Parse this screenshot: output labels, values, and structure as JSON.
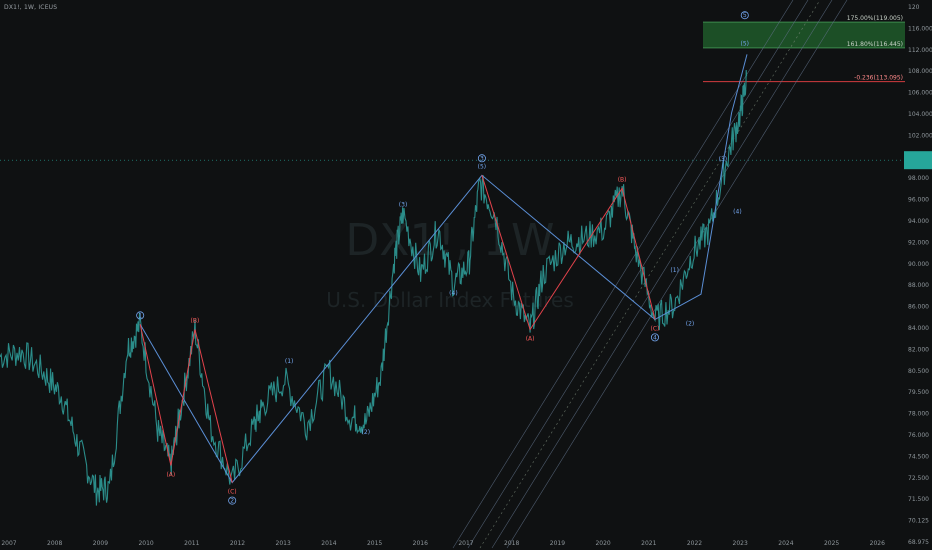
{
  "symbol_bar": {
    "symbol": "DX1!, 1W, ICEUS"
  },
  "watermark": {
    "ticker": "DX1!, 1W",
    "name": "U.S. Dollar Index Futures"
  },
  "colors": {
    "background": "#0f1112",
    "price": "#2b8d8a",
    "wave_blue": "#5b8fd6",
    "wave_red": "#e2424b",
    "label_blue": "#74a7f0",
    "label_red": "#ff5c5c",
    "fib_box": "#1e5a2a",
    "current_price_tag": "#26a69a",
    "fib_line": "#d33b3f",
    "channel": "#5f6f86"
  },
  "fib_levels": [
    {
      "label": "175.00%(119.005)",
      "value": 119.005
    },
    {
      "label": "161.80%(116.445)",
      "value": 116.445
    },
    {
      "label": "-0.236(113.095)",
      "value": 113.095
    }
  ],
  "current_price": 105.3,
  "chart_data": {
    "type": "line",
    "title": "",
    "xlabel": "",
    "ylabel": "",
    "x_ticks": [
      "2007",
      "2008",
      "2009",
      "2010",
      "2011",
      "2012",
      "2013",
      "2014",
      "2015",
      "2016",
      "2017",
      "2018",
      "2019",
      "2020",
      "2021",
      "2022",
      "2023",
      "2024",
      "2025",
      "2026"
    ],
    "y_ticks": [
      "68.975",
      "70.125",
      "71.500",
      "72.500",
      "74.500",
      "76.000",
      "78.000",
      "79.500",
      "80.500",
      "82.000",
      "84.000",
      "86.000",
      "88.000",
      "90.000",
      "92.000",
      "94.000",
      "96.000",
      "98.000",
      "100.000",
      "102.000",
      "104.000",
      "106.000",
      "108.000",
      "112.000",
      "116.000",
      "120"
    ],
    "series": [
      {
        "values": [
          [
            2006.0,
            85.8
          ],
          [
            2006.5,
            86.3
          ],
          [
            2007.0,
            84.2
          ],
          [
            2007.4,
            82.0
          ],
          [
            2007.8,
            76.8
          ],
          [
            2008.2,
            72.5
          ],
          [
            2008.5,
            72.8
          ],
          [
            2008.9,
            86.5
          ],
          [
            2009.2,
            89.0
          ],
          [
            2009.6,
            78.5
          ],
          [
            2009.9,
            75.0
          ],
          [
            2010.1,
            80.0
          ],
          [
            2010.45,
            88.5
          ],
          [
            2010.8,
            78.8
          ],
          [
            2011.3,
            73.3
          ],
          [
            2011.8,
            79.0
          ],
          [
            2012.0,
            81.0
          ],
          [
            2012.5,
            83.5
          ],
          [
            2013.0,
            79.0
          ],
          [
            2013.5,
            84.5
          ],
          [
            2014.0,
            79.8
          ],
          [
            2014.35,
            79.2
          ],
          [
            2014.7,
            84.0
          ],
          [
            2015.0,
            95.5
          ],
          [
            2015.2,
            100.0
          ],
          [
            2015.6,
            94.0
          ],
          [
            2016.0,
            98.5
          ],
          [
            2016.35,
            93.0
          ],
          [
            2016.7,
            95.0
          ],
          [
            2016.95,
            103.0
          ],
          [
            2017.3,
            100.0
          ],
          [
            2017.7,
            92.0
          ],
          [
            2018.1,
            88.5
          ],
          [
            2018.4,
            94.0
          ],
          [
            2018.9,
            97.0
          ],
          [
            2019.3,
            97.5
          ],
          [
            2019.8,
            98.5
          ],
          [
            2020.2,
            102.5
          ],
          [
            2020.5,
            96.5
          ],
          [
            2020.95,
            89.5
          ],
          [
            2021.4,
            91.0
          ],
          [
            2021.8,
            96.0
          ],
          [
            2022.2,
            98.5
          ],
          [
            2022.6,
            105.5
          ],
          [
            2022.9,
            110.0
          ],
          [
            2023.05,
            113.5
          ]
        ]
      }
    ],
    "wave_blue": [
      [
        2009.2,
        89.0
      ],
      [
        2011.3,
        73.3
      ],
      [
        2017.0,
        103.8
      ],
      [
        2020.95,
        89.5
      ],
      [
        2022.0,
        92.0
      ],
      [
        2022.7,
        110.0
      ],
      [
        2023.05,
        115.8
      ]
    ],
    "wave_red": [
      [
        2009.2,
        89.0
      ],
      [
        2009.9,
        75.0
      ],
      [
        2010.45,
        88.5
      ],
      [
        2011.3,
        73.3
      ]
    ],
    "wave_red_2": [
      [
        2017.0,
        103.8
      ],
      [
        2018.1,
        88.5
      ],
      [
        2020.2,
        102.5
      ],
      [
        2020.95,
        89.5
      ]
    ],
    "labels": [
      {
        "x": 2009.2,
        "y": 89.0,
        "text": "1",
        "color": "blue",
        "pos": "above"
      },
      {
        "x": 2009.9,
        "y": 75.0,
        "text": "(A)",
        "color": "red",
        "pos": "below"
      },
      {
        "x": 2010.45,
        "y": 88.5,
        "text": "(B)",
        "color": "red",
        "pos": "above"
      },
      {
        "x": 2011.3,
        "y": 73.3,
        "text": "(C)",
        "color": "red",
        "pos": "below"
      },
      {
        "x": 2011.3,
        "y": 73.3,
        "text": "2",
        "color": "blue",
        "pos": "below2"
      },
      {
        "x": 2012.6,
        "y": 84.5,
        "text": "(1)",
        "color": "blue",
        "pos": "above"
      },
      {
        "x": 2014.35,
        "y": 79.2,
        "text": "(2)",
        "color": "blue",
        "pos": "below"
      },
      {
        "x": 2015.2,
        "y": 100.0,
        "text": "(3)",
        "color": "blue",
        "pos": "above"
      },
      {
        "x": 2016.35,
        "y": 93.0,
        "text": "(4)",
        "color": "blue",
        "pos": "below"
      },
      {
        "x": 2017.0,
        "y": 103.8,
        "text": "3",
        "color": "blue",
        "pos": "above2"
      },
      {
        "x": 2017.0,
        "y": 103.8,
        "text": "(5)",
        "color": "blue",
        "pos": "above"
      },
      {
        "x": 2018.1,
        "y": 88.5,
        "text": "(A)",
        "color": "red",
        "pos": "below"
      },
      {
        "x": 2020.2,
        "y": 102.5,
        "text": "(B)",
        "color": "red",
        "pos": "above"
      },
      {
        "x": 2020.95,
        "y": 89.5,
        "text": "(C)",
        "color": "red",
        "pos": "below"
      },
      {
        "x": 2020.95,
        "y": 89.5,
        "text": "4",
        "color": "blue",
        "pos": "below2"
      },
      {
        "x": 2021.4,
        "y": 93.5,
        "text": "(1)",
        "color": "blue",
        "pos": "above"
      },
      {
        "x": 2021.75,
        "y": 90.0,
        "text": "(2)",
        "color": "blue",
        "pos": "below"
      },
      {
        "x": 2022.5,
        "y": 104.5,
        "text": "(3)",
        "color": "blue",
        "pos": "above"
      },
      {
        "x": 2022.65,
        "y": 100.0,
        "text": "(4)",
        "color": "blue",
        "pos": "right"
      },
      {
        "x": 2023.0,
        "y": 116.0,
        "text": "(5)",
        "color": "blue",
        "pos": "above"
      },
      {
        "x": 2023.0,
        "y": 118.0,
        "text": "5",
        "color": "blue",
        "pos": "above2"
      }
    ]
  }
}
